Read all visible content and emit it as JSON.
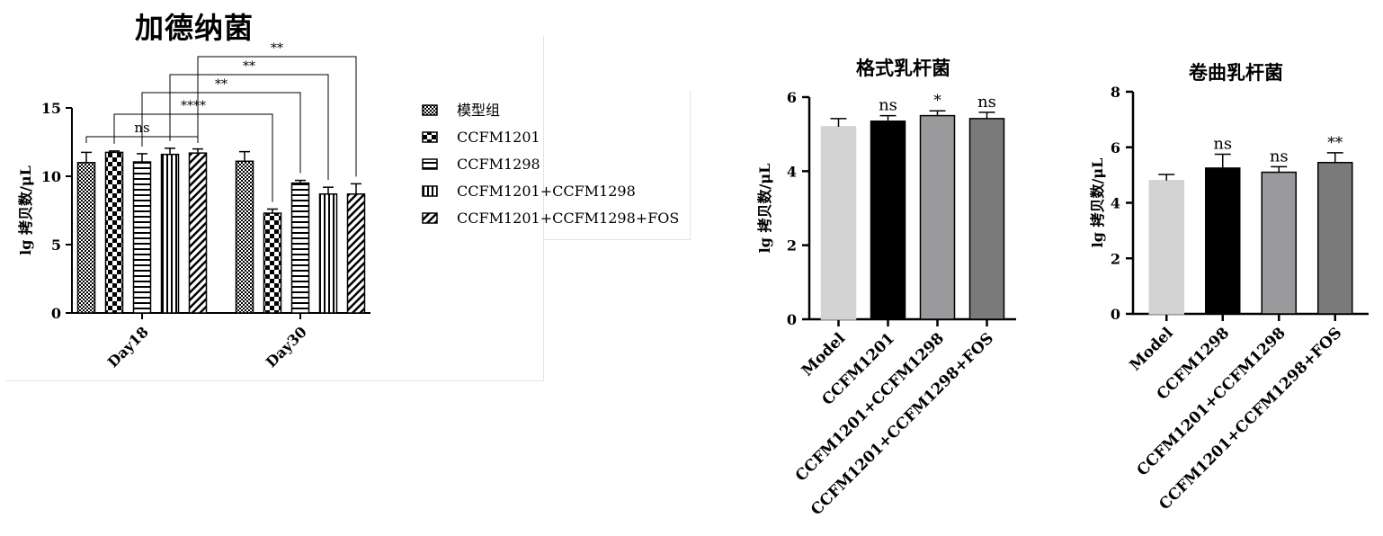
{
  "chart_data": [
    {
      "type": "bar",
      "title": "加德纳菌",
      "ylabel": "lg 拷贝数/μL",
      "ylim": [
        0,
        15
      ],
      "yticks": [
        "0",
        "5",
        "10",
        "15"
      ],
      "categories": [
        "Day18",
        "Day30"
      ],
      "series": [
        {
          "name": "模型组",
          "values": [
            11.0,
            11.1
          ],
          "errors": [
            0.75,
            0.7
          ],
          "pattern": "dots"
        },
        {
          "name": "CCFM1201",
          "values": [
            11.75,
            7.3
          ],
          "errors": [
            0.1,
            0.3
          ],
          "pattern": "checker"
        },
        {
          "name": "CCFM1298",
          "values": [
            11.05,
            9.5
          ],
          "errors": [
            0.6,
            0.2
          ],
          "pattern": "hlines"
        },
        {
          "name": "CCFM1201+CCFM1298",
          "values": [
            11.6,
            8.7
          ],
          "errors": [
            0.45,
            0.5
          ],
          "pattern": "vlines"
        },
        {
          "name": "CCFM1201+CCFM1298+FOS",
          "values": [
            11.7,
            8.7
          ],
          "errors": [
            0.3,
            0.75
          ],
          "pattern": "diag"
        }
      ],
      "annotations": [
        {
          "text": "ns"
        },
        {
          "text": "****"
        },
        {
          "text": "**"
        },
        {
          "text": "**"
        },
        {
          "text": "**"
        }
      ],
      "grid": false,
      "legend_position": "right"
    },
    {
      "type": "bar",
      "title": "格式乳杆菌",
      "ylabel": "lg 拷贝数/μL",
      "ylim": [
        0,
        6
      ],
      "yticks": [
        "0",
        "2",
        "4",
        "6"
      ],
      "categories": [
        "Model",
        "CCFM1201",
        "CCFM1201+CCFM1298",
        "CCFM1201+CCFM1298+FOS"
      ],
      "values": [
        5.2,
        5.35,
        5.5,
        5.42
      ],
      "errors": [
        0.22,
        0.15,
        0.13,
        0.17
      ],
      "colors": [
        "#d3d3d3",
        "#000000",
        "#9a9a9d",
        "#7a7a7a"
      ],
      "significance": [
        "",
        "ns",
        "*",
        "ns"
      ],
      "grid": false
    },
    {
      "type": "bar",
      "title": "卷曲乳杆菌",
      "ylabel": "lg 拷贝数/μL",
      "ylim": [
        0,
        8
      ],
      "yticks": [
        "0",
        "2",
        "4",
        "6",
        "8"
      ],
      "categories": [
        "Model",
        "CCFM1298",
        "CCFM1201+CCFM1298",
        "CCFM1201+CCFM1298+FOS"
      ],
      "values": [
        4.8,
        5.25,
        5.1,
        5.45
      ],
      "errors": [
        0.22,
        0.5,
        0.2,
        0.35
      ],
      "colors": [
        "#d3d3d3",
        "#000000",
        "#9a9a9d",
        "#7a7a7a"
      ],
      "significance": [
        "",
        "ns",
        "ns",
        "**"
      ],
      "grid": false
    }
  ]
}
